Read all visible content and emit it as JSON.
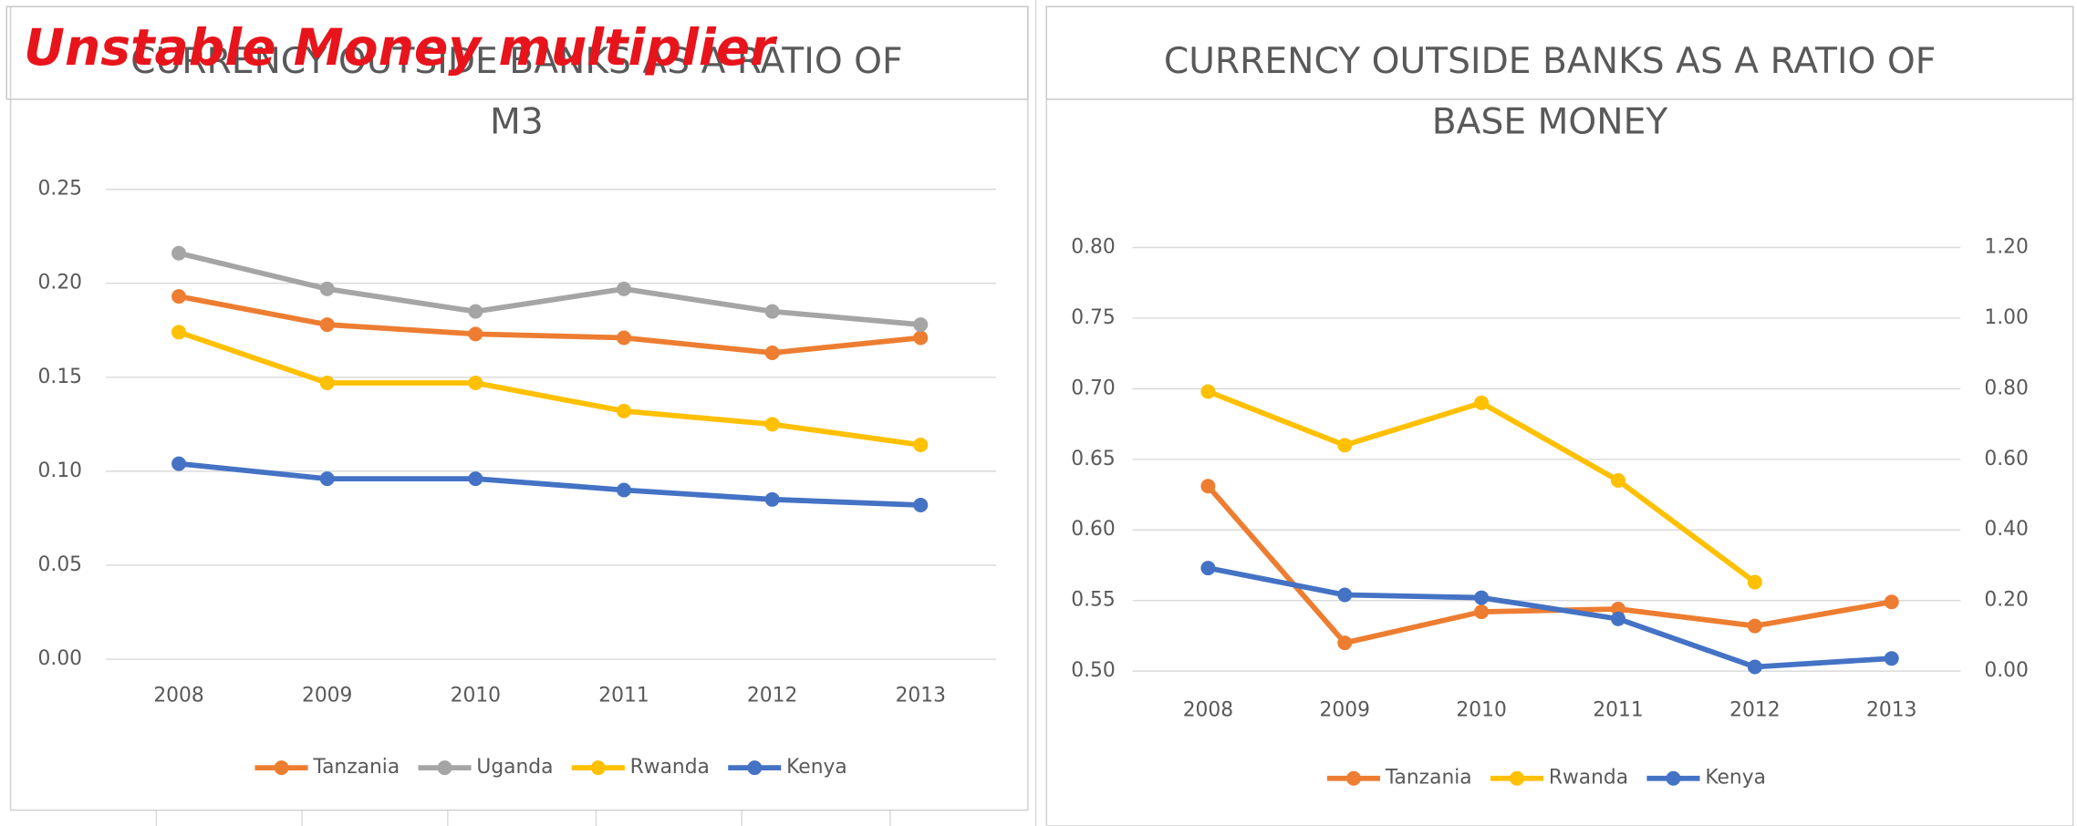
{
  "heading": "Unstable Money multiplier",
  "chart_data": [
    {
      "type": "line",
      "title": "CURRENCY OUTSIDE BANKS AS A RATIO OF M3",
      "categories": [
        "2008",
        "2009",
        "2010",
        "2011",
        "2012",
        "2013"
      ],
      "series": [
        {
          "name": "Tanzania",
          "color": "#ed7d31",
          "values": [
            0.193,
            0.178,
            0.173,
            0.171,
            0.163,
            0.171
          ]
        },
        {
          "name": "Uganda",
          "color": "#a5a5a5",
          "values": [
            0.216,
            0.197,
            0.185,
            0.197,
            0.185,
            0.178
          ]
        },
        {
          "name": "Rwanda",
          "color": "#ffc000",
          "values": [
            0.174,
            0.147,
            0.147,
            0.132,
            0.125,
            0.114
          ]
        },
        {
          "name": "Kenya",
          "color": "#4472c4",
          "values": [
            0.104,
            0.096,
            0.096,
            0.09,
            0.085,
            0.082
          ]
        }
      ],
      "ylim": [
        0,
        0.25
      ],
      "yticks": [
        {
          "value": 0,
          "label": "0.00"
        },
        {
          "value": 0.05,
          "label": "0.05"
        },
        {
          "value": 0.1,
          "label": "0.10"
        },
        {
          "value": 0.15,
          "label": "0.15"
        },
        {
          "value": 0.2,
          "label": "0.20"
        },
        {
          "value": 0.25,
          "label": "0.25"
        }
      ],
      "grid": true,
      "legend": "bottom"
    },
    {
      "type": "line",
      "title": "CURRENCY OUTSIDE BANKS AS A RATIO OF BASE MONEY",
      "categories": [
        "2008",
        "2009",
        "2010",
        "2011",
        "2012",
        "2013"
      ],
      "series": [
        {
          "name": "Tanzania",
          "color": "#ed7d31",
          "values": [
            0.631,
            0.52,
            0.542,
            0.544,
            0.532,
            0.549
          ]
        },
        {
          "name": "Rwanda",
          "color": "#ffc000",
          "values": [
            0.698,
            0.66,
            0.69,
            0.635,
            0.563,
            null
          ]
        },
        {
          "name": "Kenya",
          "color": "#4472c4",
          "values": [
            0.573,
            0.554,
            0.552,
            0.537,
            0.503,
            0.509
          ]
        }
      ],
      "ylim": [
        0.5,
        0.8
      ],
      "yticks": [
        {
          "value": 0.5,
          "label": "0.50"
        },
        {
          "value": 0.55,
          "label": "0.55"
        },
        {
          "value": 0.6,
          "label": "0.60"
        },
        {
          "value": 0.65,
          "label": "0.65"
        },
        {
          "value": 0.7,
          "label": "0.70"
        },
        {
          "value": 0.75,
          "label": "0.75"
        },
        {
          "value": 0.8,
          "label": "0.80"
        }
      ],
      "y2lim": [
        0,
        1.2
      ],
      "y2ticks": [
        {
          "value": 0,
          "label": "0.00"
        },
        {
          "value": 0.2,
          "label": "0.20"
        },
        {
          "value": 0.4,
          "label": "0.40"
        },
        {
          "value": 0.6,
          "label": "0.60"
        },
        {
          "value": 0.8,
          "label": "0.80"
        },
        {
          "value": 1,
          "label": "1.00"
        },
        {
          "value": 1.2,
          "label": "1.20"
        }
      ],
      "grid": true,
      "legend": "bottom"
    }
  ]
}
